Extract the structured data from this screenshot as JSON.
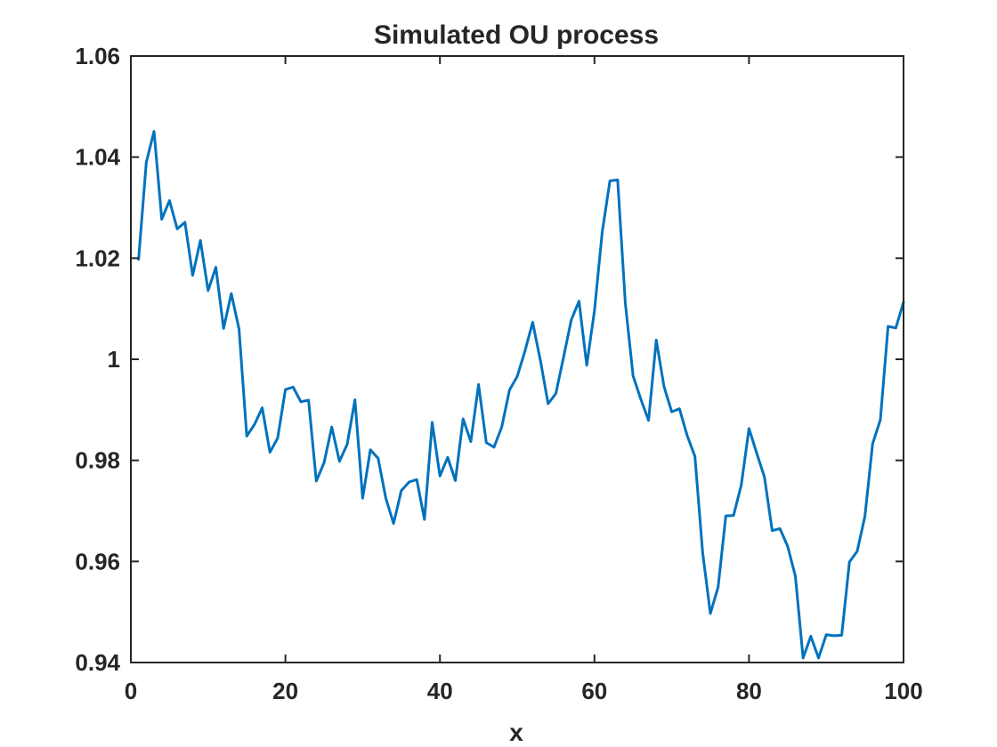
{
  "chart_data": {
    "type": "line",
    "title": "Simulated OU process",
    "xlabel": "x",
    "ylabel": "",
    "xlim": [
      0,
      100
    ],
    "ylim": [
      0.94,
      1.06
    ],
    "x_ticks": [
      0,
      20,
      40,
      60,
      80,
      100
    ],
    "x_tick_labels": [
      "0",
      "20",
      "40",
      "60",
      "80",
      "100"
    ],
    "y_ticks": [
      0.94,
      0.96,
      0.98,
      1.0,
      1.02,
      1.04,
      1.06
    ],
    "y_tick_labels": [
      "0.94",
      "0.96",
      "0.98",
      "1",
      "1.02",
      "1.04",
      "1.06"
    ],
    "grid": false,
    "line_color": "#0072BD",
    "series": [
      {
        "x": [
          1,
          2,
          3,
          4,
          5,
          6,
          7,
          8,
          9,
          10,
          11,
          12,
          13,
          14,
          15,
          16,
          17,
          18,
          19,
          20,
          21,
          22,
          23,
          24,
          25,
          26,
          27,
          28,
          29,
          30,
          31,
          32,
          33,
          34,
          35,
          36,
          37,
          38,
          39,
          40,
          41,
          42,
          43,
          44,
          45,
          46,
          47,
          48,
          49,
          50,
          51,
          52,
          53,
          54,
          55,
          56,
          57,
          58,
          59,
          60,
          61,
          62,
          63,
          64,
          65,
          66,
          67,
          68,
          69,
          70,
          71,
          72,
          73,
          74,
          75,
          76,
          77,
          78,
          79,
          80,
          81,
          82,
          83,
          84,
          85,
          86,
          87,
          88,
          89,
          90,
          91,
          92,
          93,
          94,
          95,
          96,
          97,
          98,
          99,
          100
        ],
        "values": [
          1.0198,
          1.039,
          1.0451,
          1.0277,
          1.0314,
          1.0258,
          1.0271,
          1.0166,
          1.0235,
          1.0136,
          1.0182,
          1.0061,
          1.013,
          1.006,
          0.9848,
          0.9871,
          0.9904,
          0.9816,
          0.9844,
          0.994,
          0.9945,
          0.9916,
          0.9919,
          0.9759,
          0.9795,
          0.9866,
          0.9798,
          0.9832,
          0.992,
          0.9725,
          0.9821,
          0.9804,
          0.9725,
          0.9675,
          0.974,
          0.9757,
          0.9762,
          0.9683,
          0.9875,
          0.9769,
          0.9806,
          0.976,
          0.9882,
          0.9837,
          0.995,
          0.9835,
          0.9826,
          0.9866,
          0.9939,
          0.9966,
          1.0016,
          1.0073,
          0.9998,
          0.9912,
          0.9932,
          1.0004,
          1.0078,
          1.0115,
          0.9988,
          1.0096,
          1.0251,
          1.0353,
          1.0355,
          1.011,
          0.9967,
          0.9921,
          0.9879,
          1.0038,
          0.9946,
          0.9896,
          0.9902,
          0.9849,
          0.9808,
          0.9618,
          0.9497,
          0.9549,
          0.969,
          0.9691,
          0.9751,
          0.9863,
          0.9814,
          0.9767,
          0.9661,
          0.9665,
          0.963,
          0.9571,
          0.9409,
          0.9452,
          0.9409,
          0.9455,
          0.9453,
          0.9454,
          0.9599,
          0.962,
          0.9689,
          0.9833,
          0.988,
          1.0065,
          1.0062,
          1.0113
        ]
      }
    ]
  }
}
